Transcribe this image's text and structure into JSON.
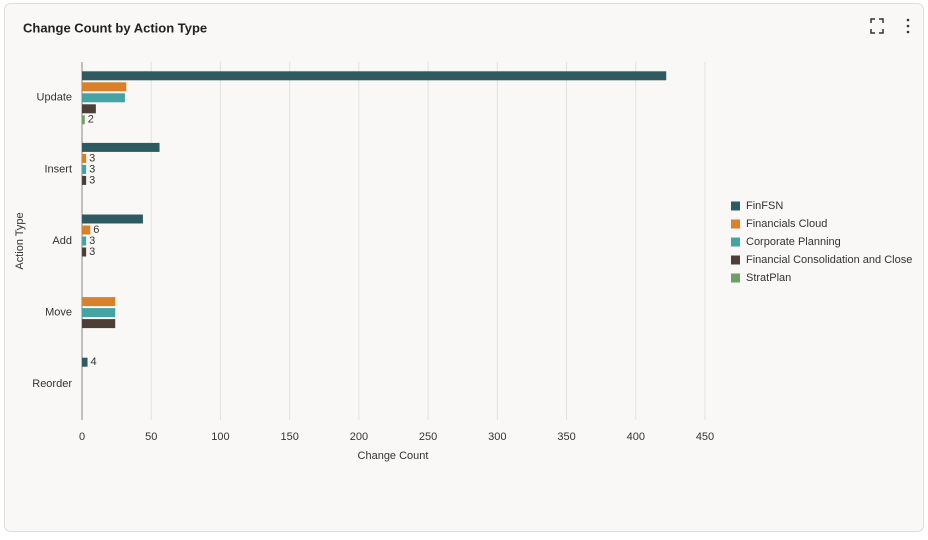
{
  "chart_data": {
    "type": "hbar",
    "title": "Change Count by Action Type",
    "x_label": "Change Count",
    "y_label": "Action Type",
    "categories": [
      "Update",
      "Insert",
      "Add",
      "Move",
      "Reorder"
    ],
    "series": [
      {
        "name": "FinFSN",
        "color": "#2e5b60",
        "values": [
          422,
          56,
          44,
          null,
          4
        ]
      },
      {
        "name": "Financials Cloud",
        "color": "#d9802a",
        "values": [
          32,
          3,
          6,
          24,
          null
        ]
      },
      {
        "name": "Corporate Planning",
        "color": "#45a3a3",
        "values": [
          31,
          3,
          3,
          24,
          null
        ]
      },
      {
        "name": "Financial Consolidation and Close",
        "color": "#4b3f37",
        "values": [
          10,
          3,
          3,
          24,
          null
        ]
      },
      {
        "name": "StratPlan",
        "color": "#6e9e6a",
        "values": [
          2,
          null,
          null,
          null,
          null
        ]
      }
    ],
    "xlim": [
      0,
      450
    ],
    "xticks": [
      0,
      50,
      100,
      150,
      200,
      250,
      300,
      350,
      400,
      450
    ],
    "grid": true,
    "legend": "right"
  }
}
